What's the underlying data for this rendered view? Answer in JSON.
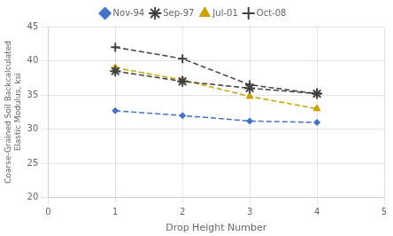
{
  "chart_data": {
    "type": "line",
    "x": [
      1,
      2,
      3,
      4
    ],
    "series": [
      {
        "name": "Nov-94",
        "color": "#4472C4",
        "marker": "diamond",
        "line_style": "dashed",
        "values": [
          32.7,
          32.0,
          31.2,
          31.0
        ]
      },
      {
        "name": "Sep-97",
        "color": "#404040",
        "marker": "star",
        "line_style": "dashed",
        "values": [
          38.5,
          37.0,
          36.0,
          35.2
        ]
      },
      {
        "name": "Jul-01",
        "color": "#C8A000",
        "marker": "triangle",
        "line_style": "dashed",
        "values": [
          39.0,
          37.2,
          34.8,
          33.0
        ]
      },
      {
        "name": "Oct-08",
        "color": "#404040",
        "marker": "plus",
        "line_style": "dashed",
        "values": [
          42.0,
          40.3,
          36.5,
          35.2
        ]
      }
    ],
    "xlabel": "Drop Height Number",
    "ylabel": "Coarse-Grained Soil Backcalculated\nElastic Modulus, ksi",
    "xlim": [
      0,
      5
    ],
    "ylim": [
      20,
      45
    ],
    "xticks": [
      0,
      1,
      2,
      3,
      4,
      5
    ],
    "yticks": [
      20,
      25,
      30,
      35,
      40,
      45
    ],
    "grid": true,
    "legend": "top"
  }
}
